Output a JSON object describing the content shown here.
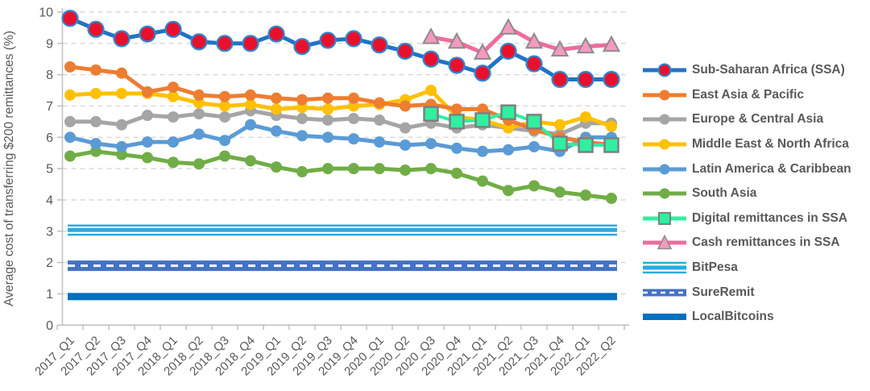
{
  "chart_data": {
    "type": "line",
    "title": "",
    "ylabel": "Average cost of transferring $200 remittances (%)",
    "xlabel": "",
    "ylim": [
      0,
      10
    ],
    "y_ticks": [
      0,
      1,
      2,
      3,
      4,
      5,
      6,
      7,
      8,
      9,
      10
    ],
    "grid": "horizontal-dashed",
    "legend_position": "right",
    "categories": [
      "2017_Q1",
      "2017_Q2",
      "2017_Q3",
      "2017_Q4",
      "2018_Q1",
      "2018_Q2",
      "2018_Q3",
      "2018_Q4",
      "2019_Q1",
      "2019_Q2",
      "2019_Q3",
      "2019_Q4",
      "2020_Q1",
      "2020_Q2",
      "2020_Q3",
      "2020_Q4",
      "2021_Q1",
      "2021_Q2",
      "2021_Q3",
      "2021_Q4",
      "2022_Q1",
      "2022_Q2"
    ],
    "series": [
      {
        "name": "Sub-Saharan Africa (SSA)",
        "marker": "circle-large",
        "line_color": "#2273C3",
        "marker_color": "#E8112D",
        "marker_edge": "#2E86D1",
        "start_index": 0,
        "values": [
          9.8,
          9.45,
          9.15,
          9.3,
          9.45,
          9.05,
          9.0,
          9.0,
          9.3,
          8.9,
          9.1,
          9.15,
          8.95,
          8.75,
          8.5,
          8.3,
          8.05,
          8.75,
          8.35,
          7.85,
          7.85,
          7.85
        ]
      },
      {
        "name": "East Asia & Pacific",
        "marker": "circle",
        "line_color": "#ED7D31",
        "marker_color": "#ED7D31",
        "marker_edge": "#ED7D31",
        "start_index": 0,
        "values": [
          8.25,
          8.15,
          8.05,
          7.45,
          7.6,
          7.35,
          7.3,
          7.35,
          7.25,
          7.2,
          7.25,
          7.25,
          7.1,
          7.0,
          7.05,
          6.9,
          6.9,
          6.55,
          6.25,
          6.0,
          5.85,
          5.75
        ]
      },
      {
        "name": "Europe & Central Asia",
        "marker": "circle",
        "line_color": "#A5A5A5",
        "marker_color": "#A5A5A5",
        "marker_edge": "#A5A5A5",
        "start_index": 0,
        "values": [
          6.5,
          6.5,
          6.4,
          6.7,
          6.65,
          6.75,
          6.65,
          6.85,
          6.7,
          6.6,
          6.55,
          6.6,
          6.55,
          6.3,
          6.45,
          6.3,
          6.4,
          6.3,
          6.2,
          6.1,
          6.45,
          6.45
        ]
      },
      {
        "name": "Middle East & North Africa",
        "marker": "circle",
        "line_color": "#FFC000",
        "marker_color": "#FFC000",
        "marker_edge": "#FFC000",
        "start_index": 0,
        "values": [
          7.35,
          7.4,
          7.4,
          7.4,
          7.3,
          7.1,
          7.0,
          7.05,
          6.9,
          6.95,
          6.9,
          7.0,
          7.05,
          7.2,
          7.5,
          6.65,
          6.55,
          6.3,
          6.5,
          6.4,
          6.65,
          6.35
        ]
      },
      {
        "name": "Latin America & Caribbean",
        "marker": "circle",
        "line_color": "#5B9BD5",
        "marker_color": "#5B9BD5",
        "marker_edge": "#5B9BD5",
        "start_index": 0,
        "values": [
          6.0,
          5.8,
          5.7,
          5.85,
          5.85,
          6.1,
          5.9,
          6.4,
          6.2,
          6.05,
          6.0,
          5.95,
          5.85,
          5.75,
          5.8,
          5.65,
          5.55,
          5.6,
          5.7,
          5.55,
          6.0,
          6.0
        ]
      },
      {
        "name": "South Asia",
        "marker": "circle",
        "line_color": "#70AD47",
        "marker_color": "#70AD47",
        "marker_edge": "#70AD47",
        "start_index": 0,
        "values": [
          5.4,
          5.55,
          5.45,
          5.35,
          5.2,
          5.15,
          5.4,
          5.25,
          5.05,
          4.9,
          5.0,
          5.0,
          5.0,
          4.95,
          5.0,
          4.85,
          4.6,
          4.3,
          4.45,
          4.25,
          4.15,
          4.05
        ]
      },
      {
        "name": "Digital remittances in SSA",
        "marker": "square",
        "line_color": "#2EF0A0",
        "marker_color": "#2EF0A0",
        "marker_edge": "#7F7F7F",
        "start_index": 14,
        "values": [
          6.75,
          6.5,
          6.55,
          6.8,
          6.5,
          5.8,
          5.75,
          5.75
        ]
      },
      {
        "name": "Cash remittances in SSA",
        "marker": "triangle",
        "line_color": "#F06B9C",
        "marker_color": "#F49AC0",
        "marker_edge": "#8C8C8C",
        "start_index": 14,
        "values": [
          9.2,
          9.05,
          8.7,
          9.5,
          9.05,
          8.8,
          8.9,
          8.95
        ]
      }
    ],
    "reference_lines": [
      {
        "name": "BitPesa",
        "value": 3.0,
        "color": "#29ABE2",
        "style": "triple"
      },
      {
        "name": "SureRemit",
        "value": 2.0,
        "color": "#4472C4",
        "style": "band-dashed"
      },
      {
        "name": "LocalBitcoins",
        "value": 0.9,
        "color": "#0070C0",
        "style": "thick"
      }
    ],
    "colors": {
      "grid": "#D9D9D9",
      "axis": "#BFBFBF",
      "text": "#595959",
      "background": "#FFFFFF"
    }
  }
}
